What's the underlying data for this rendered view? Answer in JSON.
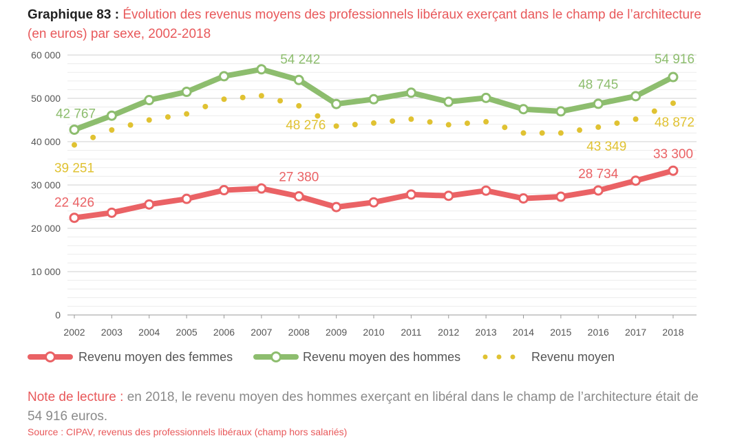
{
  "title": {
    "number": "Graphique 83 :",
    "text": "Évolution des revenus moyens des professionnels libéraux exerçant dans le champ de l’architecture (en euros) par sexe, 2002-2018"
  },
  "chart_data": {
    "type": "line",
    "title": "Évolution des revenus moyens des professionnels libéraux exerçant dans le champ de l’architecture (en euros) par sexe, 2002-2018",
    "x": [
      2002,
      2003,
      2004,
      2005,
      2006,
      2007,
      2008,
      2009,
      2010,
      2011,
      2012,
      2013,
      2014,
      2015,
      2016,
      2017,
      2018
    ],
    "ylim": [
      0,
      60000
    ],
    "yticks": [
      {
        "value": 0,
        "label": "0"
      },
      {
        "value": 10000,
        "label": "10 000"
      },
      {
        "value": 20000,
        "label": "20 000"
      },
      {
        "value": 30000,
        "label": "30 000"
      },
      {
        "value": 40000,
        "label": "40 000"
      },
      {
        "value": 50000,
        "label": "50 000"
      },
      {
        "value": 60000,
        "label": "60 000"
      }
    ],
    "grid": true,
    "legend_position": "bottom",
    "series": [
      {
        "name": "Revenu moyen des femmes",
        "color": "#ea6265",
        "style": "thick-line-hollow-markers",
        "values": [
          22426,
          23600,
          25500,
          26800,
          28800,
          29200,
          27380,
          24900,
          26000,
          27800,
          27500,
          28700,
          26900,
          27300,
          28734,
          31000,
          33300
        ],
        "labels": [
          {
            "index": 0,
            "text": "22 426"
          },
          {
            "index": 6,
            "text": "27 380"
          },
          {
            "index": 14,
            "text": "28 734"
          },
          {
            "index": 16,
            "text": "33 300"
          }
        ]
      },
      {
        "name": "Revenu moyen des hommes",
        "color": "#8dbd6e",
        "style": "thick-line-hollow-markers",
        "values": [
          42767,
          46000,
          49600,
          51500,
          55100,
          56700,
          54242,
          48700,
          49800,
          51300,
          49200,
          50100,
          47500,
          47000,
          48745,
          50500,
          54916
        ],
        "labels": [
          {
            "index": 0,
            "text": "42 767"
          },
          {
            "index": 6,
            "text": "54 242"
          },
          {
            "index": 14,
            "text": "48 745"
          },
          {
            "index": 16,
            "text": "54 916"
          }
        ]
      },
      {
        "name": "Revenu moyen",
        "color": "#e0c232",
        "style": "dotted",
        "values": [
          39251,
          42700,
          45000,
          46400,
          49800,
          50600,
          48276,
          43600,
          44300,
          45200,
          43900,
          44600,
          42000,
          42000,
          43349,
          45200,
          48872
        ],
        "labels": [
          {
            "index": 0,
            "text": "39 251"
          },
          {
            "index": 6,
            "text": "48 276"
          },
          {
            "index": 14,
            "text": "43 349"
          },
          {
            "index": 16,
            "text": "48 872"
          }
        ]
      }
    ]
  },
  "note": {
    "label": "Note de lecture :",
    "text": " en 2018, le revenu moyen des hommes exerçant en libéral dans le champ de l’architecture était de 54 916 euros."
  },
  "source": {
    "label": "Source :",
    "text": " CIPAV, revenus des professionnels libéraux (champ hors salariés)"
  }
}
